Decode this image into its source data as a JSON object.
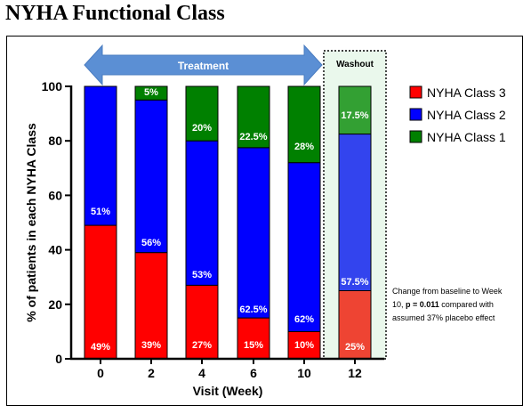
{
  "title": "NYHA Functional Class",
  "colors": {
    "class3": "#ff0000",
    "class2": "#0000ff",
    "class1": "#008000",
    "washout_class3": "#ee4433",
    "washout_class2": "#3344ee",
    "washout_class1": "#33a033",
    "washout_bg": "#eaf8ec",
    "arrow": "#5b8fd4"
  },
  "annotations": {
    "treatment_label": "Treatment",
    "washout_label": "Washout",
    "note_lines": [
      "Change from baseline to Week",
      "10, |p = 0.011| compared with",
      "assumed 37% placebo effect"
    ]
  },
  "chart_data": {
    "type": "bar",
    "stacked": true,
    "categories": [
      "0",
      "2",
      "4",
      "6",
      "10",
      "12"
    ],
    "xlabel": "Visit (Week)",
    "ylabel": "% of patients in each NYHA Class",
    "ylim": [
      0,
      100
    ],
    "yticks": [
      0,
      20,
      40,
      60,
      80,
      100
    ],
    "series": [
      {
        "name": "NYHA Class 3",
        "values": [
          49,
          39,
          27,
          15,
          10,
          25
        ],
        "labels": [
          "49%",
          "39%",
          "27%",
          "15%",
          "10%",
          "25%"
        ]
      },
      {
        "name": "NYHA Class 2",
        "values": [
          51,
          56,
          53,
          62.5,
          62,
          57.5
        ],
        "labels": [
          "51%",
          "56%",
          "53%",
          "62.5%",
          "62%",
          "57.5%"
        ]
      },
      {
        "name": "NYHA Class 1",
        "values": [
          0,
          5,
          20,
          22.5,
          28,
          17.5
        ],
        "labels": [
          "",
          "5%",
          "20%",
          "22.5%",
          "28%",
          "17.5%"
        ]
      }
    ],
    "legend": [
      "NYHA Class 3",
      "NYHA Class 2",
      "NYHA Class 1"
    ],
    "legend_position": "right"
  }
}
